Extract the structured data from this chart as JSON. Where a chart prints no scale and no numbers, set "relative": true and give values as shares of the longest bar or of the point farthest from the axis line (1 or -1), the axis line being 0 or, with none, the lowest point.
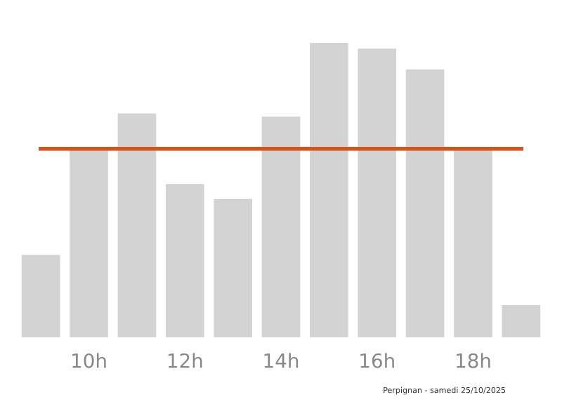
{
  "chart_data": {
    "type": "bar",
    "relative": true,
    "categories": [
      null,
      "10h",
      null,
      "12h",
      null,
      "14h",
      null,
      "16h",
      null,
      "18h",
      null
    ],
    "values": [
      0.28,
      0.64,
      0.76,
      0.52,
      0.47,
      0.75,
      1,
      0.98,
      0.91,
      0.64,
      0.11
    ],
    "color": "#d3d3d3",
    "ref_lines": [
      {
        "axis": "y",
        "value": 0.64,
        "color": "#d2541e",
        "line_style": "solid"
      }
    ],
    "grid": false,
    "annotations": [
      "Perpignan - samedi 25/10/2025"
    ]
  }
}
